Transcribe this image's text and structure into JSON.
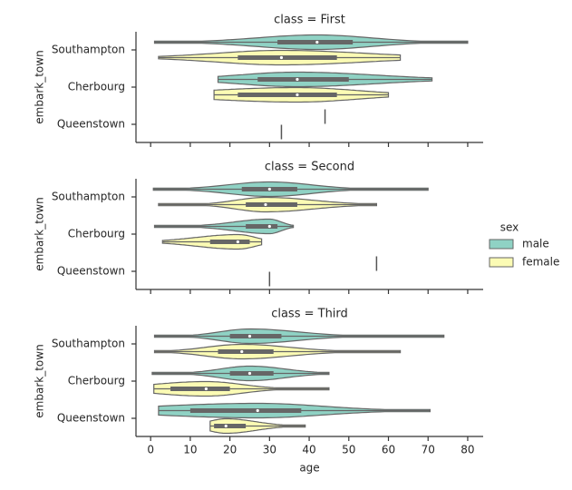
{
  "chart_data": [
    {
      "type": "violin",
      "title": "class = First",
      "ylabel": "embark_town",
      "legend_title": "sex",
      "legend": "right",
      "categories": [
        "Southampton",
        "Cherbourg",
        "Queenstown"
      ],
      "series": [
        {
          "name": "male",
          "color": "#8fd2c4",
          "values": [
            {
              "min": 1,
              "q1": 32,
              "median": 42,
              "q3": 51,
              "max": 80
            },
            {
              "min": 17,
              "q1": 27,
              "median": 37,
              "q3": 50,
              "max": 71
            },
            {
              "min": 44,
              "q1": 44,
              "median": 44,
              "q3": 44,
              "max": 44
            }
          ]
        },
        {
          "name": "female",
          "color": "#fbfbb4",
          "values": [
            {
              "min": 2,
              "q1": 22,
              "median": 33,
              "q3": 47,
              "max": 63
            },
            {
              "min": 16,
              "q1": 22,
              "median": 37,
              "q3": 47,
              "max": 60
            },
            {
              "min": 33,
              "q1": 33,
              "median": 33,
              "q3": 33,
              "max": 33
            }
          ]
        }
      ],
      "xlim": [
        -3.7,
        83.9
      ],
      "xticks": [
        0,
        10,
        20,
        30,
        40,
        50,
        60,
        70,
        80
      ]
    },
    {
      "type": "violin",
      "title": "class = Second",
      "ylabel": "embark_town",
      "categories": [
        "Southampton",
        "Cherbourg",
        "Queenstown"
      ],
      "series": [
        {
          "name": "male",
          "color": "#8fd2c4",
          "values": [
            {
              "min": 0.7,
              "q1": 23,
              "median": 30,
              "q3": 37,
              "max": 70
            },
            {
              "min": 1,
              "q1": 24,
              "median": 30,
              "q3": 32,
              "max": 36
            },
            {
              "min": 57,
              "q1": 57,
              "median": 57,
              "q3": 57,
              "max": 57
            }
          ]
        },
        {
          "name": "female",
          "color": "#fbfbb4",
          "values": [
            {
              "min": 2,
              "q1": 24,
              "median": 29,
              "q3": 37,
              "max": 57
            },
            {
              "min": 3,
              "q1": 15,
              "median": 22,
              "q3": 25,
              "max": 28
            },
            {
              "min": 30,
              "q1": 30,
              "median": 30,
              "q3": 30,
              "max": 30
            }
          ]
        }
      ],
      "xlim": [
        -3.7,
        83.9
      ],
      "xticks": [
        0,
        10,
        20,
        30,
        40,
        50,
        60,
        70,
        80
      ]
    },
    {
      "type": "violin",
      "title": "class = Third",
      "ylabel": "embark_town",
      "xlabel": "age",
      "categories": [
        "Southampton",
        "Cherbourg",
        "Queenstown"
      ],
      "series": [
        {
          "name": "male",
          "color": "#8fd2c4",
          "values": [
            {
              "min": 1,
              "q1": 20,
              "median": 25,
              "q3": 33,
              "max": 74
            },
            {
              "min": 0.4,
              "q1": 20,
              "median": 25,
              "q3": 31,
              "max": 45
            },
            {
              "min": 2,
              "q1": 10,
              "median": 27,
              "q3": 38,
              "max": 70.5
            }
          ]
        },
        {
          "name": "female",
          "color": "#fbfbb4",
          "values": [
            {
              "min": 1,
              "q1": 17,
              "median": 23,
              "q3": 31,
              "max": 63
            },
            {
              "min": 0.8,
              "q1": 5,
              "median": 14,
              "q3": 20,
              "max": 45
            },
            {
              "min": 15,
              "q1": 16,
              "median": 19,
              "q3": 24,
              "max": 39
            }
          ]
        }
      ],
      "xlim": [
        -3.7,
        83.9
      ],
      "xticks": [
        0,
        10,
        20,
        30,
        40,
        50,
        60,
        70,
        80
      ]
    }
  ]
}
